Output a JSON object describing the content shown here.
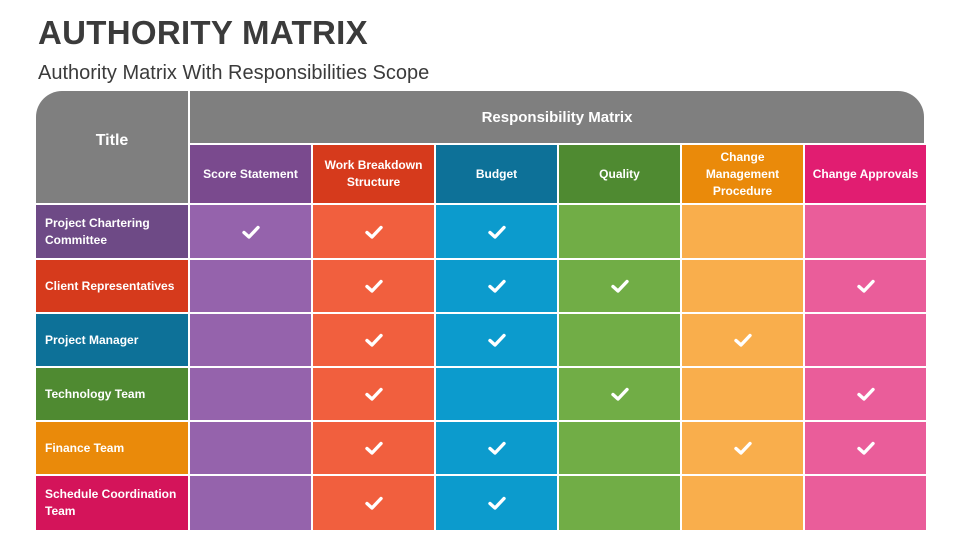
{
  "header": {
    "title": "AUTHORITY MATRIX",
    "subtitle": "Authority Matrix With Responsibilities Scope"
  },
  "matrix": {
    "title_label": "Title",
    "group_label": "Responsibility Matrix",
    "columns": [
      {
        "label": "Score Statement",
        "header_color": "#7a4a8e",
        "cell_color": "#9563ac"
      },
      {
        "label": "Work Breakdown Structure",
        "header_color": "#d63a1c",
        "cell_color": "#f15f3e"
      },
      {
        "label": "Budget",
        "header_color": "#0d7198",
        "cell_color": "#0c9bcd"
      },
      {
        "label": "Quality",
        "header_color": "#4f8a31",
        "cell_color": "#71ad46"
      },
      {
        "label": "Change Management Procedure",
        "header_color": "#ea8a0a",
        "cell_color": "#f9ae4c"
      },
      {
        "label": "Change Approvals",
        "header_color": "#e11d71",
        "cell_color": "#ea5d9a"
      }
    ],
    "rows": [
      {
        "label": "Project Chartering Committee",
        "color": "#6e4a86",
        "checks": [
          true,
          true,
          true,
          false,
          false,
          false
        ]
      },
      {
        "label": "Client Representatives",
        "color": "#d63a1c",
        "checks": [
          false,
          true,
          true,
          true,
          false,
          true
        ]
      },
      {
        "label": "Project Manager",
        "color": "#0d7198",
        "checks": [
          false,
          true,
          true,
          false,
          true,
          false
        ]
      },
      {
        "label": "Technology Team",
        "color": "#4f8a31",
        "checks": [
          false,
          true,
          false,
          true,
          false,
          true
        ]
      },
      {
        "label": "Finance Team",
        "color": "#ea8a0a",
        "checks": [
          false,
          true,
          true,
          false,
          true,
          true
        ]
      },
      {
        "label": "Schedule Coordination Team",
        "color": "#d4145a",
        "checks": [
          false,
          true,
          true,
          false,
          false,
          false
        ]
      }
    ],
    "check_icon": "checkmark-icon"
  }
}
